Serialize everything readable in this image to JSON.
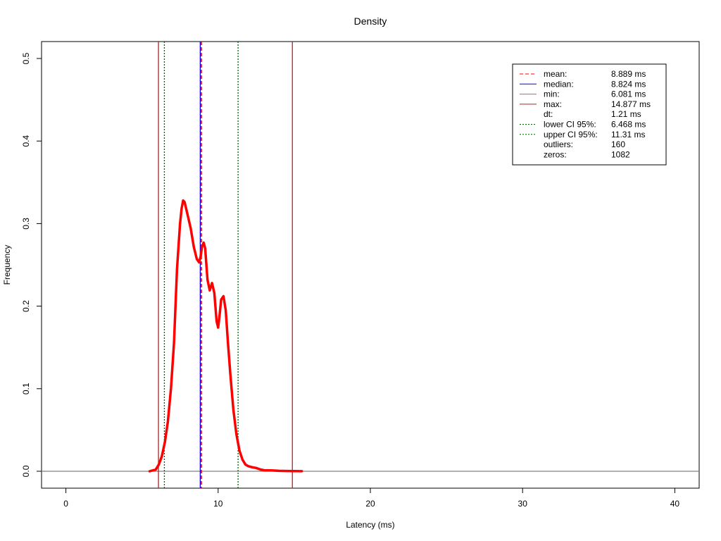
{
  "chart_data": {
    "type": "line",
    "title": "Density",
    "xlabel": "Latency (ms)",
    "ylabel": "Frequency",
    "xlim": [
      -1.6,
      41.6
    ],
    "ylim": [
      -0.0205,
      0.5205
    ],
    "x_ticks": [
      0,
      10,
      20,
      30,
      40
    ],
    "y_ticks": [
      0.0,
      0.1,
      0.2,
      0.3,
      0.4,
      0.5
    ],
    "x_tick_labels": [
      "0",
      "10",
      "20",
      "30",
      "40"
    ],
    "y_tick_labels": [
      "0.0",
      "0.1",
      "0.2",
      "0.3",
      "0.4",
      "0.5"
    ],
    "grid": false,
    "legend_position": "top-right",
    "series": [
      {
        "name": "density",
        "color": "#ff0000",
        "x": [
          5.5,
          5.9,
          6.1,
          6.3,
          6.5,
          6.7,
          6.9,
          7.1,
          7.3,
          7.5,
          7.6,
          7.7,
          7.8,
          7.9,
          8.0,
          8.2,
          8.4,
          8.6,
          8.75,
          8.85,
          8.95,
          9.05,
          9.15,
          9.3,
          9.45,
          9.6,
          9.75,
          9.9,
          10.0,
          10.1,
          10.2,
          10.35,
          10.5,
          10.65,
          10.8,
          11.0,
          11.2,
          11.4,
          11.6,
          11.8,
          12.0,
          12.2,
          12.5,
          12.8,
          13.1,
          13.5,
          14.0,
          14.5,
          15.0,
          15.5
        ],
        "y": [
          0.0,
          0.002,
          0.008,
          0.018,
          0.035,
          0.06,
          0.1,
          0.155,
          0.245,
          0.3,
          0.318,
          0.328,
          0.326,
          0.318,
          0.31,
          0.294,
          0.272,
          0.257,
          0.253,
          0.26,
          0.273,
          0.277,
          0.27,
          0.232,
          0.219,
          0.228,
          0.216,
          0.182,
          0.174,
          0.19,
          0.208,
          0.212,
          0.195,
          0.155,
          0.118,
          0.075,
          0.045,
          0.025,
          0.014,
          0.008,
          0.006,
          0.005,
          0.004,
          0.002,
          0.001,
          0.001,
          0.0005,
          0.0003,
          0.0002,
          0.0001
        ]
      }
    ],
    "vlines": [
      {
        "name": "min",
        "x": 6.081,
        "color": "#b22222",
        "style": "solid"
      },
      {
        "name": "lower CI 95%",
        "x": 6.468,
        "color": "#006400",
        "style": "dotted"
      },
      {
        "name": "median",
        "x": 8.824,
        "color": "#0000ff",
        "style": "solid"
      },
      {
        "name": "mean",
        "x": 8.889,
        "color": "#ff0000",
        "style": "dashed"
      },
      {
        "name": "upper CI 95%",
        "x": 11.31,
        "color": "#006400",
        "style": "dotted"
      },
      {
        "name": "max",
        "x": 14.877,
        "color": "#b22222",
        "style": "solid"
      }
    ],
    "hline": {
      "y": 0,
      "color": "#808080"
    },
    "legend": [
      {
        "label": "mean:",
        "value": "8.889 ms",
        "color": "#ff0000",
        "style": "dashed"
      },
      {
        "label": "median:",
        "value": "8.824 ms",
        "color": "#0000ff",
        "style": "solid"
      },
      {
        "label": "min:",
        "value": "6.081 ms",
        "color": "#cd5c5c",
        "style": "solid"
      },
      {
        "label": "max:",
        "value": "14.877 ms",
        "color": "#b22222",
        "style": "solid"
      },
      {
        "label": "dt:",
        "value": "1.21 ms",
        "color": "",
        "style": "none"
      },
      {
        "label": "lower CI 95%:",
        "value": "6.468 ms",
        "color": "#006400",
        "style": "dotted"
      },
      {
        "label": "upper CI 95%:",
        "value": "11.31 ms",
        "color": "#006400",
        "style": "dotted"
      },
      {
        "label": "outliers:",
        "value": "160",
        "color": "",
        "style": "none"
      },
      {
        "label": "zeros:",
        "value": "1082",
        "color": "",
        "style": "none"
      }
    ]
  }
}
